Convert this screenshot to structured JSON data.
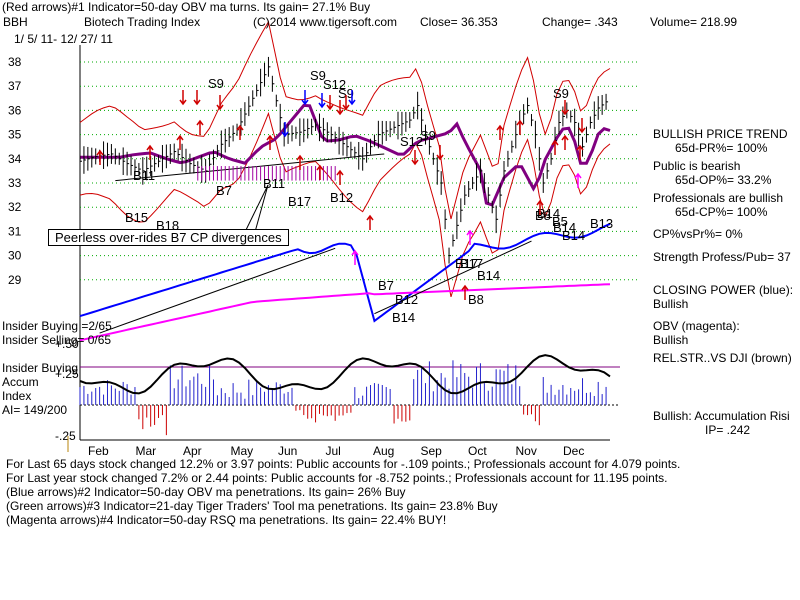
{
  "header": {
    "line1": "(Red arrows)#1 Indicator=50-day OBV ma turns. Its gain= 27.1% Buy",
    "symbol": "BBH",
    "name": "Biotech Trading Index",
    "copyright": "(C)2014 www.tigersoft.com",
    "close": "Close=  36.353",
    "change": "Change= .343",
    "volume": "Volume= 218.99",
    "date_range": "1/ 5/ 11-  12/ 27/ 11"
  },
  "right_panel": {
    "bullish_trend": "BULLISH PRICE TREND",
    "pr": "65d-PR%= 100%",
    "public_bearish": "Public is bearish",
    "op": "65d-OP%= 33.2%",
    "pros_bullish": "Professionals are bullish",
    "cp": "65d-CP%= 100%",
    "cpvspr": "CP%vsPr%=  0%",
    "strength": "Strength Profess/Pub= 37",
    "closing_power": "CLOSING POWER (blue):",
    "closing_power_val": "Bullish",
    "obv": "OBV (magenta):",
    "obv_val": "Bullish",
    "relstr": "REL.STR..VS DJI (brown)",
    "accum": "Bullish: Accumulation Risi",
    "ip": "IP=  .242"
  },
  "left_labels": {
    "insider_buying": "Insider Buying =2/65",
    "insider_selling": "Insider Selling= 0/65",
    "insider_buying2": "Insider Buying",
    "accum": "Accum",
    "index": "Index",
    "ai": "AI= 149/200"
  },
  "annotation": "Peerless over-rides B7 CP divergences",
  "footer": [
    "For Last 65 days stock changed  12.2% or  3.97 points:  Public accounts for -.109 points.;  Professionals account for  4.079 points.",
    "For Last year stock changed  7.2% or  2.44 points:  Public accounts for -8.752 points.;  Professionals account for  11.195 points.",
    "(Blue arrows)#2 Indicator=50-day OBV ma penetrations. Its gain= 26% Buy",
    "(Green arrows)#3 Indicator=21-day Tiger Traders' Tool ma penetrations. Its gain= 23.8% Buy",
    "(Magenta arrows)#4 Indicator=50-day RSQ ma penetrations. Its gain= 22.4% BUY!"
  ],
  "signals": [
    "S9",
    "S9",
    "S12",
    "S9",
    "S9",
    "S12",
    "S9",
    "B7",
    "B11",
    "B15",
    "B18",
    "B11",
    "B17",
    "B12",
    "B7",
    "B12",
    "B14",
    "B17",
    "B8",
    "B14",
    "B8",
    "B14",
    "B13",
    "B5",
    "B14",
    "B14",
    "B17"
  ],
  "chart_data": {
    "type": "line",
    "title": "Biotech Trading Index",
    "months": [
      "Feb",
      "Mar",
      "Apr",
      "May",
      "Jun",
      "Jul",
      "Aug",
      "Sep",
      "Oct",
      "Nov",
      "Dec"
    ],
    "price_ticks": [
      29,
      30,
      31,
      32,
      33,
      34,
      35,
      36,
      37,
      38
    ],
    "ylim": [
      28.4,
      38.4
    ],
    "accum_ticks": [
      "+.50",
      "+.25",
      "-.25"
    ],
    "colors": {
      "price": "#000000",
      "bands": "#d00000",
      "ma": "#800080",
      "closing_power": "#0000ff",
      "obv": "#ff00ff",
      "relstr": "#a0522d",
      "accum_pos": "#2222cc",
      "accum_neg": "#cc0000",
      "grid": "#00aa00"
    },
    "series": [
      {
        "key": "price",
        "x": [
          0,
          8,
          16,
          24,
          32,
          40,
          48,
          56,
          64,
          72,
          80,
          88,
          96,
          104,
          112,
          120,
          128,
          136,
          144,
          152,
          160,
          168,
          172,
          176,
          180,
          184,
          188,
          196,
          204,
          212,
          216,
          220,
          224,
          228,
          232,
          236,
          240,
          244,
          248,
          252,
          256,
          260,
          264,
          268
        ],
        "values": [
          33.9,
          34.1,
          34.2,
          33.8,
          33.5,
          33.9,
          34.3,
          33.8,
          33.5,
          34.6,
          35.2,
          36.5,
          37.8,
          35.0,
          35.1,
          35.4,
          35.0,
          34.5,
          34.0,
          35.0,
          35.3,
          35.6,
          36.2,
          35.0,
          34.0,
          33.0,
          30.0,
          32.5,
          33.5,
          31.5,
          33.5,
          34.5,
          35.5,
          36.2,
          35.0,
          33.0,
          34.0,
          35.5,
          36.0,
          35.5,
          34.5,
          35.5,
          36.1,
          36.353
        ]
      },
      {
        "key": "relstr",
        "x": [
          0,
          30,
          60,
          90,
          120,
          150,
          175,
          190,
          200,
          220,
          240,
          260,
          270
        ],
        "values": [
          28.6,
          28.9,
          29.4,
          29.8,
          30.3,
          30.8,
          30.6,
          30.0,
          29.5,
          29.8,
          30.0,
          30.3,
          30.5
        ]
      }
    ]
  }
}
